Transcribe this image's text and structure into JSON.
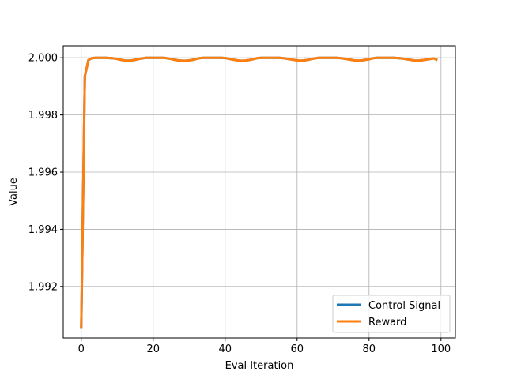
{
  "chart_data": {
    "type": "line",
    "xlabel": "Eval Iteration",
    "ylabel": "Value",
    "xlim": [
      -5,
      104
    ],
    "ylim": [
      1.9902,
      2.00042
    ],
    "x_ticks": [
      0,
      20,
      40,
      60,
      80,
      100
    ],
    "y_ticks": [
      1.992,
      1.994,
      1.996,
      1.998,
      2.0
    ],
    "x_tick_labels": [
      "0",
      "20",
      "40",
      "60",
      "80",
      "100"
    ],
    "y_tick_labels": [
      "1.992",
      "1.994",
      "1.996",
      "1.998",
      "2.000"
    ],
    "grid": true,
    "legend_position": "lower-right",
    "series": [
      {
        "name": "Control Signal",
        "color": "#1f77b4",
        "x": [
          0,
          1,
          2,
          3,
          4,
          5,
          6,
          7,
          8,
          9,
          10,
          11,
          12,
          13,
          14,
          15,
          16,
          17,
          18,
          19,
          20,
          21,
          22,
          23,
          24,
          25,
          26,
          27,
          28,
          29,
          30,
          31,
          32,
          33,
          34,
          35,
          36,
          37,
          38,
          39,
          40,
          41,
          42,
          43,
          44,
          45,
          46,
          47,
          48,
          49,
          50,
          51,
          52,
          53,
          54,
          55,
          56,
          57,
          58,
          59,
          60,
          61,
          62,
          63,
          64,
          65,
          66,
          67,
          68,
          69,
          70,
          71,
          72,
          73,
          74,
          75,
          76,
          77,
          78,
          79,
          80,
          81,
          82,
          83,
          84,
          85,
          86,
          87,
          88,
          89,
          90,
          91,
          92,
          93,
          94,
          95,
          96,
          97,
          98,
          99
        ],
        "y": [
          1.99052,
          1.99935,
          1.99992,
          1.99999,
          2.0,
          2.0,
          2.0,
          2.0,
          1.99999,
          1.99998,
          1.99996,
          1.99993,
          1.99991,
          1.9999,
          1.99991,
          1.99993,
          1.99996,
          1.99998,
          2.0,
          2.0,
          2.0,
          2.0,
          2.0,
          2.0,
          1.99998,
          1.99996,
          1.99993,
          1.99991,
          1.9999,
          1.9999,
          1.99991,
          1.99993,
          1.99996,
          1.99999,
          2.0,
          2.0,
          2.0,
          2.0,
          2.0,
          2.0,
          1.99999,
          1.99997,
          1.99994,
          1.99992,
          1.9999,
          1.9999,
          1.99991,
          1.99993,
          1.99996,
          1.99999,
          2.0,
          2.0,
          2.0,
          2.0,
          2.0,
          2.0,
          1.99999,
          1.99997,
          1.99995,
          1.99993,
          1.99991,
          1.9999,
          1.99991,
          1.99993,
          1.99996,
          1.99998,
          2.0,
          2.0,
          2.0,
          2.0,
          2.0,
          2.0,
          1.99999,
          1.99997,
          1.99995,
          1.99993,
          1.99991,
          1.9999,
          1.99991,
          1.99993,
          1.99995,
          1.99998,
          2.0,
          2.0,
          2.0,
          2.0,
          2.0,
          2.0,
          1.99999,
          1.99998,
          1.99996,
          1.99994,
          1.99992,
          1.9999,
          1.99991,
          1.99992,
          1.99994,
          1.99996,
          1.99998,
          1.99992
        ]
      },
      {
        "name": "Reward",
        "color": "#ff7f0e",
        "x": [
          0,
          1,
          2,
          3,
          4,
          5,
          6,
          7,
          8,
          9,
          10,
          11,
          12,
          13,
          14,
          15,
          16,
          17,
          18,
          19,
          20,
          21,
          22,
          23,
          24,
          25,
          26,
          27,
          28,
          29,
          30,
          31,
          32,
          33,
          34,
          35,
          36,
          37,
          38,
          39,
          40,
          41,
          42,
          43,
          44,
          45,
          46,
          47,
          48,
          49,
          50,
          51,
          52,
          53,
          54,
          55,
          56,
          57,
          58,
          59,
          60,
          61,
          62,
          63,
          64,
          65,
          66,
          67,
          68,
          69,
          70,
          71,
          72,
          73,
          74,
          75,
          76,
          77,
          78,
          79,
          80,
          81,
          82,
          83,
          84,
          85,
          86,
          87,
          88,
          89,
          90,
          91,
          92,
          93,
          94,
          95,
          96,
          97,
          98,
          99
        ],
        "y": [
          1.99052,
          1.99935,
          1.99992,
          1.99999,
          2.0,
          2.0,
          2.0,
          2.0,
          1.99999,
          1.99998,
          1.99996,
          1.99993,
          1.99991,
          1.9999,
          1.99991,
          1.99993,
          1.99996,
          1.99998,
          2.0,
          2.0,
          2.0,
          2.0,
          2.0,
          2.0,
          1.99998,
          1.99996,
          1.99993,
          1.99991,
          1.9999,
          1.9999,
          1.99991,
          1.99993,
          1.99996,
          1.99999,
          2.0,
          2.0,
          2.0,
          2.0,
          2.0,
          2.0,
          1.99999,
          1.99997,
          1.99994,
          1.99992,
          1.9999,
          1.9999,
          1.99991,
          1.99993,
          1.99996,
          1.99999,
          2.0,
          2.0,
          2.0,
          2.0,
          2.0,
          2.0,
          1.99999,
          1.99997,
          1.99995,
          1.99993,
          1.99991,
          1.9999,
          1.99991,
          1.99993,
          1.99996,
          1.99998,
          2.0,
          2.0,
          2.0,
          2.0,
          2.0,
          2.0,
          1.99999,
          1.99997,
          1.99995,
          1.99993,
          1.99991,
          1.9999,
          1.99991,
          1.99993,
          1.99995,
          1.99998,
          2.0,
          2.0,
          2.0,
          2.0,
          2.0,
          2.0,
          1.99999,
          1.99998,
          1.99996,
          1.99994,
          1.99992,
          1.9999,
          1.99991,
          1.99992,
          1.99994,
          1.99996,
          1.99998,
          1.99992
        ]
      }
    ]
  }
}
